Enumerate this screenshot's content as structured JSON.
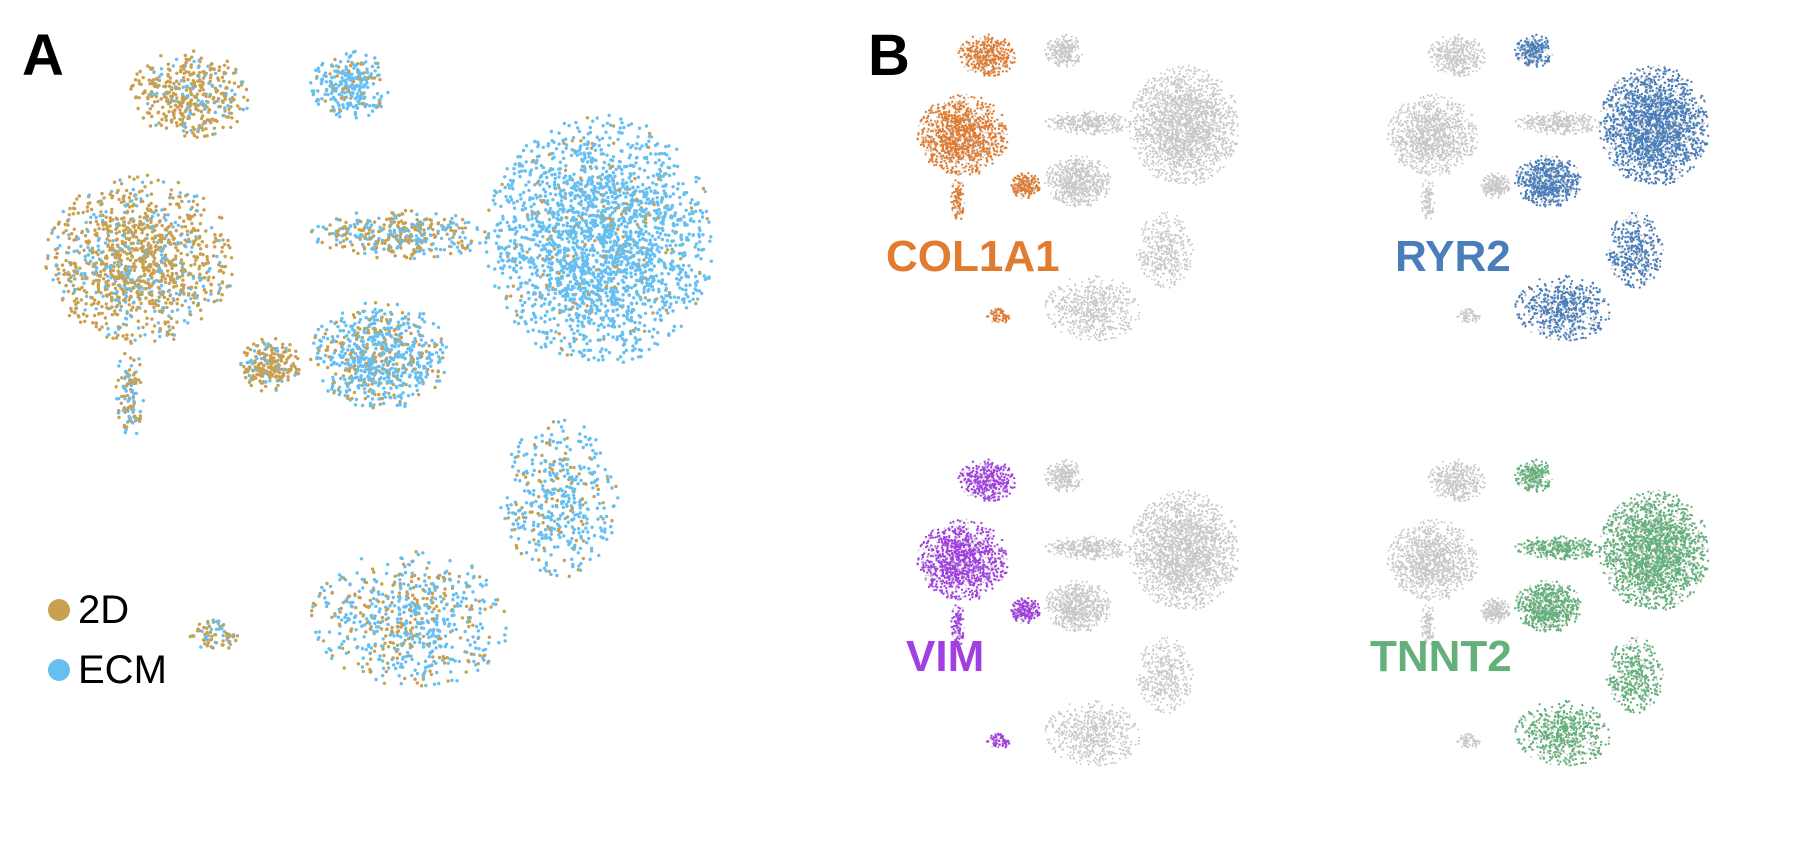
{
  "panels": {
    "a": "A",
    "b": "B"
  },
  "legend": [
    {
      "label": "2D",
      "color": "#C8A050"
    },
    {
      "label": "ECM",
      "color": "#66BFF0"
    }
  ],
  "genes": [
    {
      "label": "COL1A1",
      "color": "#E07B2F",
      "highlight": [
        "fibro_top",
        "fibro_main",
        "fibro_tail",
        "bridge_lower",
        "hook"
      ]
    },
    {
      "label": "RYR2",
      "color": "#4A7EBB",
      "highlight": [
        "cm_big",
        "cm_top",
        "middle",
        "bottom_arm",
        "bottom_lobe"
      ]
    },
    {
      "label": "VIM",
      "color": "#A23FE0",
      "highlight": [
        "fibro_top",
        "fibro_main",
        "fibro_tail",
        "bridge_lower",
        "hook"
      ]
    },
    {
      "label": "TNNT2",
      "color": "#63B07A",
      "highlight": [
        "cm_big",
        "cm_top",
        "middle",
        "bottom_arm",
        "bottom_lobe",
        "bridge"
      ]
    }
  ],
  "chart_data": [
    {
      "type": "scatter",
      "title": "",
      "xlabel": "",
      "ylabel": "",
      "legend": {
        "entries": [
          "2D",
          "ECM"
        ],
        "placement": "bottom-left"
      },
      "series": [
        {
          "name": "2D",
          "color": "#C8A050"
        },
        {
          "name": "ECM",
          "color": "#66BFF0"
        }
      ]
    },
    {
      "type": "scatter",
      "annotation": "COL1A1",
      "highlight_color": "#E07B2F",
      "background_color": "#C8C8C8"
    },
    {
      "type": "scatter",
      "annotation": "RYR2",
      "highlight_color": "#4A7EBB",
      "background_color": "#C8C8C8"
    },
    {
      "type": "scatter",
      "annotation": "VIM",
      "highlight_color": "#A23FE0",
      "background_color": "#C8C8C8"
    },
    {
      "type": "scatter",
      "annotation": "TNNT2",
      "highlight_color": "#63B07A",
      "background_color": "#C8C8C8"
    }
  ]
}
